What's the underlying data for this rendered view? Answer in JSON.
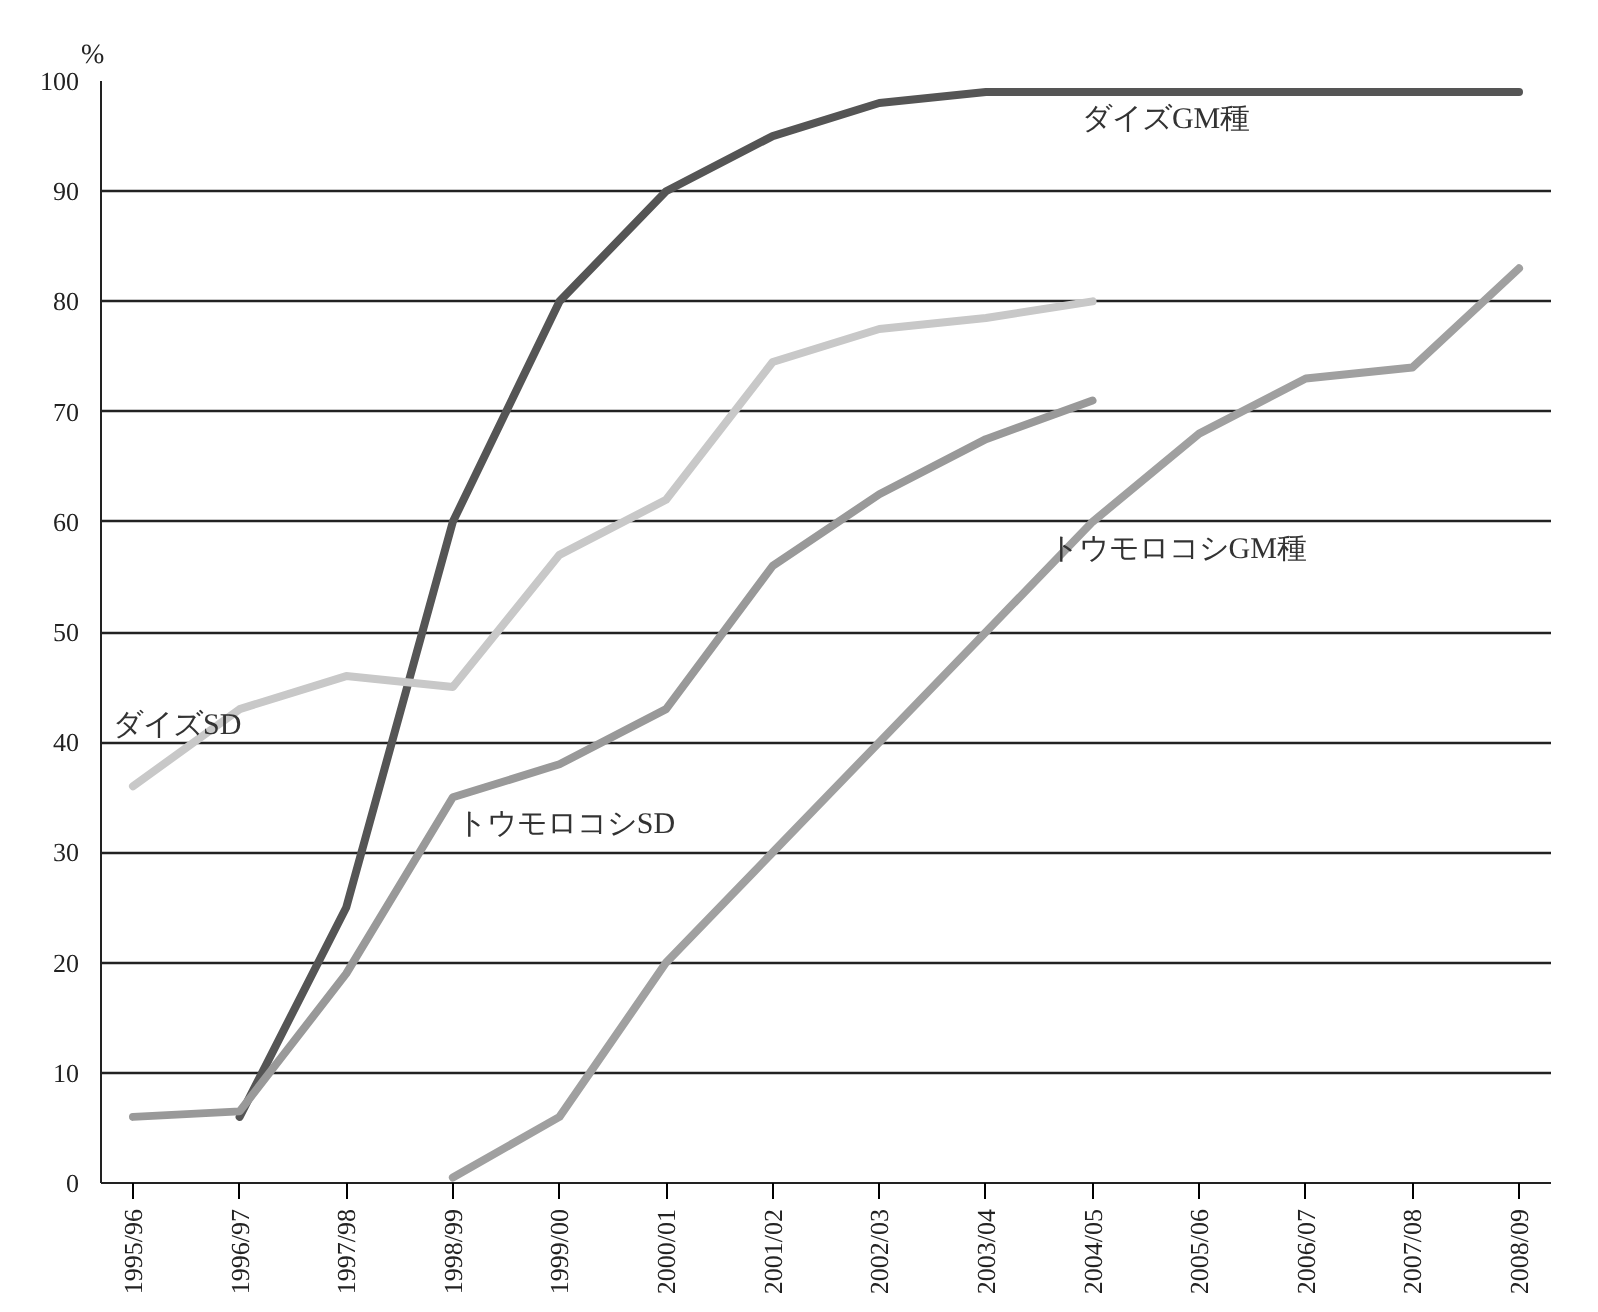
{
  "chart_data": {
    "type": "line",
    "ylabel": "%",
    "categories": [
      "1995/96",
      "1996/97",
      "1997/98",
      "1998/99",
      "1999/00",
      "2000/01",
      "2001/02",
      "2002/03",
      "2003/04",
      "2004/05",
      "2005/06",
      "2006/07",
      "2007/08",
      "2008/09"
    ],
    "ylim": [
      0,
      100
    ],
    "yticks": [
      0,
      10,
      20,
      30,
      40,
      50,
      60,
      70,
      80,
      90,
      100
    ],
    "grid": "y",
    "marker": "none",
    "line_style": "solid",
    "series": [
      {
        "name": "ダイズGM種",
        "color": "#555555",
        "values": [
          null,
          6,
          25,
          60,
          80,
          90,
          95,
          98,
          99,
          99,
          99,
          99,
          99,
          99
        ]
      },
      {
        "name": "ダイズSD",
        "color": "#c8c8c8",
        "values": [
          36,
          43,
          46,
          45,
          57,
          62,
          74.5,
          77.5,
          78.5,
          80,
          null,
          null,
          null,
          null
        ]
      },
      {
        "name": "トウモロコシSD",
        "color": "#999999",
        "values": [
          6,
          6.5,
          19,
          35,
          38,
          43,
          56,
          62.5,
          67.5,
          71,
          null,
          null,
          null,
          null
        ]
      },
      {
        "name": "トウモロコシGM種",
        "color": "#a0a0a0",
        "values": [
          null,
          null,
          null,
          0.5,
          6,
          20,
          30,
          40,
          50,
          60,
          68,
          73,
          74,
          83
        ]
      }
    ]
  }
}
